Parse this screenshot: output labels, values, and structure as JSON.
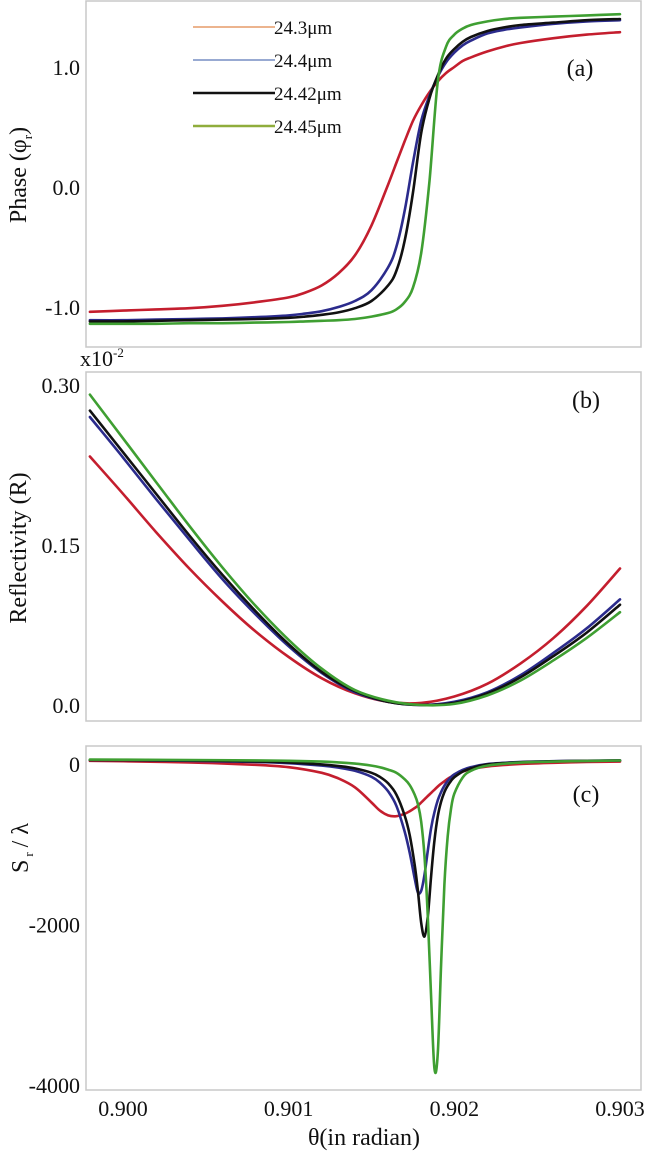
{
  "chart_data": [
    {
      "type": "line",
      "panel_label": "(a)",
      "ylabel": "Phase (φ r)",
      "ylabel_main": "Phase (φ",
      "ylabel_sub": "r",
      "ylabel_close": ")",
      "xlabel": "",
      "ylim": [
        -1.25,
        1.55
      ],
      "xlim": [
        0.8998,
        0.9031
      ],
      "yticks": [
        {
          "v": 1.0,
          "label": "1.0"
        },
        {
          "v": 0.0,
          "label": "0.0"
        },
        {
          "v": -1.0,
          "label": "-1.0"
        }
      ],
      "legend": {
        "placement": "top-left",
        "entries": [
          {
            "label": "24.3μm",
            "color": "#e0884a"
          },
          {
            "label": "24.4μm",
            "color": "#5a78b8"
          },
          {
            "label": "24.42μm",
            "color": "#111111"
          },
          {
            "label": "24.45μm",
            "color": "#8fad3c"
          }
        ]
      },
      "x": [
        0.8998,
        0.9,
        0.9002,
        0.9004,
        0.9006,
        0.9008,
        0.901,
        0.9011,
        0.9012,
        0.9013,
        0.9014,
        0.9015,
        0.9016,
        0.90165,
        0.9017,
        0.90175,
        0.9018,
        0.90185,
        0.9019,
        0.90195,
        0.902,
        0.90205,
        0.9021,
        0.9022,
        0.9023,
        0.9024,
        0.9026,
        0.9028,
        0.903
      ],
      "series": [
        {
          "name": "24.3μm",
          "color": "#c41e2e",
          "values": [
            -1.04,
            -1.03,
            -1.02,
            -1.01,
            -0.99,
            -0.96,
            -0.92,
            -0.88,
            -0.82,
            -0.72,
            -0.57,
            -0.32,
            0.02,
            0.2,
            0.38,
            0.55,
            0.68,
            0.79,
            0.88,
            0.95,
            1.0,
            1.05,
            1.08,
            1.13,
            1.17,
            1.2,
            1.24,
            1.27,
            1.29
          ]
        },
        {
          "name": "24.4μm",
          "color": "#2b2b8c",
          "values": [
            -1.11,
            -1.11,
            -1.105,
            -1.1,
            -1.095,
            -1.085,
            -1.07,
            -1.055,
            -1.035,
            -1.0,
            -0.95,
            -0.86,
            -0.67,
            -0.5,
            -0.2,
            0.2,
            0.55,
            0.76,
            0.92,
            1.04,
            1.12,
            1.18,
            1.22,
            1.28,
            1.31,
            1.33,
            1.36,
            1.38,
            1.39
          ]
        },
        {
          "name": "24.42μm",
          "color": "#111111",
          "values": [
            -1.12,
            -1.12,
            -1.115,
            -1.11,
            -1.105,
            -1.1,
            -1.09,
            -1.08,
            -1.065,
            -1.045,
            -1.01,
            -0.95,
            -0.82,
            -0.7,
            -0.45,
            -0.05,
            0.45,
            0.74,
            0.93,
            1.07,
            1.15,
            1.21,
            1.25,
            1.3,
            1.33,
            1.35,
            1.37,
            1.39,
            1.4
          ]
        },
        {
          "name": "24.45μm",
          "color": "#3f9f32",
          "values": [
            -1.14,
            -1.14,
            -1.14,
            -1.135,
            -1.135,
            -1.13,
            -1.125,
            -1.12,
            -1.115,
            -1.11,
            -1.1,
            -1.08,
            -1.05,
            -1.02,
            -0.96,
            -0.84,
            -0.55,
            0.05,
            0.88,
            1.17,
            1.27,
            1.32,
            1.35,
            1.38,
            1.4,
            1.41,
            1.42,
            1.43,
            1.44
          ]
        }
      ]
    },
    {
      "type": "line",
      "panel_label": "(b)",
      "ylabel": "Reflectivity (R)",
      "xlabel": "",
      "scale_note": "x10",
      "scale_exp": "-2",
      "ylim": [
        -0.015,
        0.314
      ],
      "xlim": [
        0.8998,
        0.9031
      ],
      "yticks": [
        {
          "v": 0.3,
          "label": "0.30"
        },
        {
          "v": 0.15,
          "label": "0.15"
        },
        {
          "v": 0.0,
          "label": "0.0"
        }
      ],
      "x": [
        0.8998,
        0.9,
        0.9002,
        0.9004,
        0.9006,
        0.9008,
        0.901,
        0.9012,
        0.9014,
        0.9016,
        0.9018,
        0.902,
        0.9022,
        0.9024,
        0.9026,
        0.9028,
        0.903
      ],
      "series": [
        {
          "name": "24.3μm",
          "color": "#c41e2e",
          "values": [
            0.233,
            0.198,
            0.162,
            0.128,
            0.097,
            0.069,
            0.045,
            0.025,
            0.011,
            0.003,
            0.002,
            0.008,
            0.02,
            0.039,
            0.063,
            0.093,
            0.128
          ]
        },
        {
          "name": "24.4μm",
          "color": "#2b2b8c",
          "values": [
            0.27,
            0.232,
            0.193,
            0.155,
            0.118,
            0.085,
            0.055,
            0.03,
            0.012,
            0.003,
            0.0,
            0.003,
            0.012,
            0.028,
            0.049,
            0.072,
            0.099
          ]
        },
        {
          "name": "24.42μm",
          "color": "#111111",
          "values": [
            0.276,
            0.237,
            0.198,
            0.159,
            0.122,
            0.088,
            0.057,
            0.031,
            0.013,
            0.003,
            0.0,
            0.002,
            0.011,
            0.026,
            0.046,
            0.068,
            0.094
          ]
        },
        {
          "name": "24.45μm",
          "color": "#3f9f32",
          "values": [
            0.291,
            0.25,
            0.209,
            0.168,
            0.129,
            0.093,
            0.061,
            0.034,
            0.014,
            0.004,
            0.0,
            0.001,
            0.009,
            0.023,
            0.042,
            0.063,
            0.087
          ]
        }
      ]
    },
    {
      "type": "line",
      "panel_label": "(c)",
      "ylabel": "S r / λ",
      "ylabel_main": "S",
      "ylabel_sub": "r",
      "ylabel_rest": "/ λ",
      "xlabel": "θ(in radian)",
      "ylim": [
        -4000,
        250
      ],
      "xlim": [
        0.8998,
        0.9031
      ],
      "xticks": [
        {
          "v": 0.9,
          "label": "0.900"
        },
        {
          "v": 0.901,
          "label": "0.901"
        },
        {
          "v": 0.902,
          "label": "0.902"
        },
        {
          "v": 0.903,
          "label": "0.903"
        }
      ],
      "yticks": [
        {
          "v": 0,
          "label": "0"
        },
        {
          "v": -2000,
          "label": "-2000"
        },
        {
          "v": -4000,
          "label": "-4000"
        }
      ],
      "x": [
        0.8998,
        0.9,
        0.9004,
        0.9008,
        0.901,
        0.9012,
        0.9013,
        0.9014,
        0.9015,
        0.90155,
        0.9016,
        0.90165,
        0.9017,
        0.90173,
        0.90176,
        0.90178,
        0.9018,
        0.90182,
        0.90184,
        0.90186,
        0.90188,
        0.9019,
        0.90192,
        0.90194,
        0.90196,
        0.90198,
        0.902,
        0.90205,
        0.9021,
        0.9022,
        0.9024,
        0.9026,
        0.9028,
        0.903
      ],
      "series": [
        {
          "name": "24.3μm",
          "color": "#c41e2e",
          "values": [
            40,
            35,
            20,
            -10,
            -40,
            -110,
            -180,
            -290,
            -480,
            -580,
            -640,
            -650,
            -620,
            -590,
            -550,
            -520,
            -480,
            -440,
            -400,
            -360,
            -320,
            -280,
            -245,
            -215,
            -185,
            -160,
            -135,
            -95,
            -65,
            -30,
            0,
            15,
            25,
            30
          ]
        },
        {
          "name": "24.4μm",
          "color": "#2b2b8c",
          "values": [
            50,
            48,
            40,
            25,
            10,
            -20,
            -45,
            -85,
            -160,
            -230,
            -340,
            -520,
            -840,
            -1100,
            -1420,
            -1600,
            -1580,
            -1380,
            -1080,
            -800,
            -600,
            -450,
            -350,
            -270,
            -210,
            -165,
            -130,
            -75,
            -40,
            0,
            25,
            35,
            40,
            45
          ]
        },
        {
          "name": "24.42μm",
          "color": "#111111",
          "values": [
            50,
            49,
            44,
            32,
            20,
            -5,
            -25,
            -55,
            -110,
            -160,
            -240,
            -380,
            -640,
            -880,
            -1250,
            -1580,
            -1980,
            -2150,
            -1900,
            -1400,
            -950,
            -650,
            -470,
            -350,
            -270,
            -210,
            -165,
            -95,
            -55,
            -5,
            22,
            34,
            40,
            45
          ]
        },
        {
          "name": "24.45μm",
          "color": "#3f9f32",
          "values": [
            55,
            54,
            50,
            45,
            40,
            30,
            20,
            5,
            -20,
            -40,
            -70,
            -110,
            -190,
            -260,
            -380,
            -500,
            -720,
            -1150,
            -1900,
            -2900,
            -3800,
            -3600,
            -2500,
            -1500,
            -900,
            -560,
            -370,
            -170,
            -85,
            -20,
            18,
            30,
            38,
            44
          ]
        }
      ]
    }
  ]
}
